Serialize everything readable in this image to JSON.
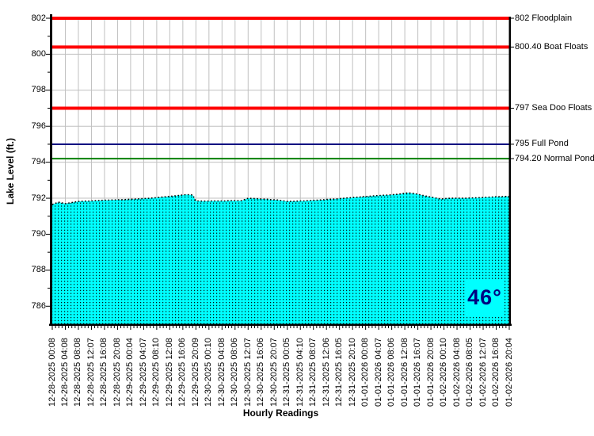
{
  "chart_data": {
    "type": "area",
    "title": "",
    "xlabel": "Hourly Readings",
    "ylabel": "Lake Level (ft.)",
    "ylim": [
      785,
      802
    ],
    "y_ticks": [
      786,
      788,
      790,
      792,
      794,
      796,
      798,
      800,
      802
    ],
    "grid": true,
    "legend": "none",
    "x_tick_labels": [
      "12-28-2025 00:08",
      "12-28-2025 04:08",
      "12-28-2025 08:08",
      "12-28-2025 12:07",
      "12-28-2025 16:08",
      "12-28-2025 20:08",
      "12-29-2025 00:04",
      "12-29-2025 04:07",
      "12-29-2025 08:10",
      "12-29-2025 12:08",
      "12-29-2025 16:06",
      "12-29-2025 20:09",
      "12-30-2025 00:10",
      "12-30-2025 04:08",
      "12-30-2025 08:06",
      "12-30-2025 12:07",
      "12-30-2025 16:06",
      "12-30-2025 20:07",
      "12-31-2025 00:05",
      "12-31-2025 04:10",
      "12-31-2025 08:07",
      "12-31-2025 12:06",
      "12-31-2025 16:05",
      "12-31-2025 20:10",
      "01-01-2026 00:08",
      "01-01-2026 04:07",
      "01-01-2026 08:06",
      "01-01-2026 12:08",
      "01-01-2026 16:07",
      "01-01-2026 20:08",
      "01-02-2026 00:10",
      "01-02-2026 04:08",
      "01-02-2026 08:05",
      "01-02-2026 12:07",
      "01-02-2026 16:08",
      "01-02-2026 20:04"
    ],
    "points_per_labeled_tick": 4,
    "series": [
      {
        "name": "Lake Level",
        "color": "#00FFFF",
        "values": [
          791.65,
          791.72,
          791.78,
          791.74,
          791.7,
          791.73,
          791.76,
          791.79,
          791.82,
          791.83,
          791.84,
          791.84,
          791.85,
          791.86,
          791.87,
          791.88,
          791.89,
          791.89,
          791.9,
          791.9,
          791.91,
          791.92,
          791.92,
          791.93,
          791.94,
          791.95,
          791.96,
          791.97,
          791.98,
          791.99,
          792.0,
          792.02,
          792.03,
          792.05,
          792.07,
          792.08,
          792.1,
          792.12,
          792.14,
          792.16,
          792.18,
          792.2,
          792.19,
          792.18,
          791.85,
          791.85,
          791.84,
          791.84,
          791.84,
          791.85,
          791.85,
          791.85,
          791.85,
          791.85,
          791.86,
          791.86,
          791.86,
          791.86,
          791.86,
          791.93,
          792.0,
          791.99,
          791.98,
          791.97,
          791.96,
          791.95,
          791.94,
          791.92,
          791.91,
          791.9,
          791.87,
          791.85,
          791.82,
          791.83,
          791.83,
          791.84,
          791.85,
          791.85,
          791.86,
          791.87,
          791.88,
          791.89,
          791.9,
          791.91,
          791.93,
          791.94,
          791.95,
          791.96,
          791.98,
          791.99,
          792.01,
          792.02,
          792.04,
          792.05,
          792.06,
          792.08,
          792.09,
          792.11,
          792.12,
          792.14,
          792.15,
          792.16,
          792.17,
          792.18,
          792.19,
          792.21,
          792.22,
          792.25,
          792.27,
          792.3,
          792.28,
          792.26,
          792.22,
          792.18,
          792.14,
          792.1,
          792.06,
          792.03,
          791.99,
          791.96,
          791.97,
          791.99,
          792.0,
          792.0,
          792.0,
          792.0,
          792.0,
          792.0,
          792.01,
          792.02,
          792.02,
          792.03,
          792.04,
          792.05,
          792.06,
          792.07,
          792.08,
          792.08,
          792.09,
          792.1,
          792.1
        ]
      }
    ],
    "reference_lines": [
      {
        "value": 802,
        "label": "802 Floodplain",
        "color": "#FF0000",
        "width": 4
      },
      {
        "value": 800.4,
        "label": "800.40 Boat Floats",
        "color": "#FF0000",
        "width": 4
      },
      {
        "value": 797,
        "label": "797 Sea Doo Floats",
        "color": "#FF0000",
        "width": 4
      },
      {
        "value": 795,
        "label": "795 Full Pond",
        "color": "#000080",
        "width": 2
      },
      {
        "value": 794.2,
        "label": "794.20 Normal Pond",
        "color": "#008000",
        "width": 2
      }
    ],
    "colors": {
      "grid": "#C0C0C0",
      "axis": "#000000",
      "marker": "#000000",
      "area_fill": "#00FFFF",
      "pattern_dot": "#000000"
    }
  },
  "temperature_badge": {
    "text": "46°",
    "color": "#000080",
    "background": "#00FFFF"
  }
}
